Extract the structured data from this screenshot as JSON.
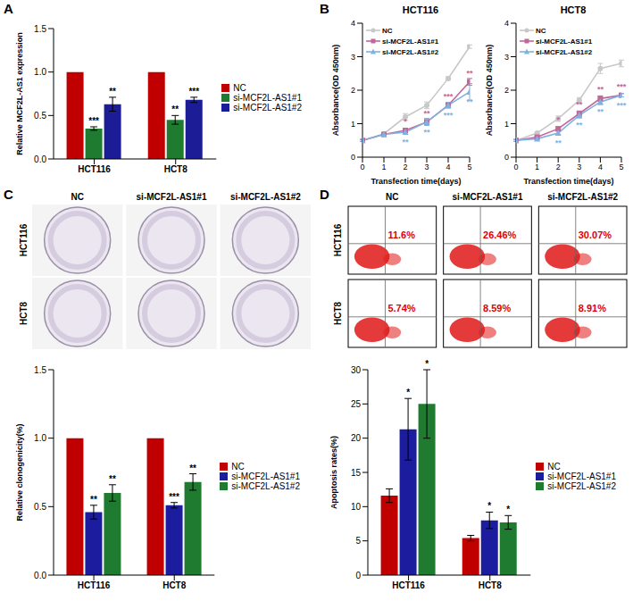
{
  "chart_data": [
    {
      "panel": "A",
      "type": "bar",
      "categories": [
        "HCT116",
        "HCT8"
      ],
      "ylabel": "Relative MCF2L-AS1 expression",
      "ylim": [
        0,
        1.5
      ],
      "yticks": [
        {
          "value": 0,
          "label": "0.0"
        },
        {
          "value": 0.5,
          "label": "0.5"
        },
        {
          "value": 1,
          "label": "1.0"
        },
        {
          "value": 1.5,
          "label": "1.5"
        }
      ],
      "legend": "right",
      "series": [
        {
          "name": "NC",
          "color": "#c00000",
          "values": [
            1,
            1
          ],
          "errors": [
            0,
            0
          ],
          "significance": [
            null,
            null
          ]
        },
        {
          "name": "si-MCF2L-AS1#1",
          "color": "#1e7b30",
          "values": [
            0.35,
            0.45
          ],
          "errors": [
            0.02,
            0.05
          ],
          "significance": [
            "***",
            "**"
          ]
        },
        {
          "name": "si-MCF2L-AS1#2",
          "color": "#1c1c96",
          "values": [
            0.63,
            0.68
          ],
          "errors": [
            0.08,
            0.03
          ],
          "significance": [
            "**",
            "***"
          ]
        }
      ]
    },
    {
      "panel": "B",
      "type": "line",
      "title": "HCT116",
      "x": [
        0,
        1,
        2,
        3,
        4,
        5
      ],
      "xlabel": "Transfection time(days)",
      "ylabel": "Absorbance(OD 450nm)",
      "xlim": [
        0,
        5
      ],
      "xticks": [
        0,
        1,
        2,
        3,
        4,
        5
      ],
      "ylim": [
        0,
        4
      ],
      "yticks": [
        0,
        1,
        2,
        3,
        4
      ],
      "legend": "upper left",
      "series": [
        {
          "name": "NC",
          "color": "#c8c8c8",
          "marker": "circle",
          "values": [
            0.5,
            0.7,
            1.2,
            1.55,
            2.35,
            3.3
          ],
          "errors": [
            0.03,
            0.03,
            0.1,
            0.1,
            0.05,
            0.05
          ],
          "significance": [
            null,
            null,
            null,
            null,
            null,
            null
          ]
        },
        {
          "name": "si-MCF2L-AS1#1",
          "color": "#c2679a",
          "marker": "square",
          "values": [
            0.5,
            0.68,
            0.8,
            1.05,
            1.55,
            2.25
          ],
          "errors": [
            0.03,
            0.03,
            0.05,
            0.1,
            0.08,
            0.1
          ],
          "significance": [
            null,
            null,
            "*",
            "**",
            "***",
            "**"
          ]
        },
        {
          "name": "si-MCF2L-AS1#2",
          "color": "#7fb2e0",
          "marker": "triangle",
          "values": [
            0.5,
            0.68,
            0.75,
            1.05,
            1.55,
            1.95
          ],
          "errors": [
            0.03,
            0.03,
            0.05,
            0.1,
            0.08,
            0.25
          ],
          "significance": [
            null,
            null,
            "**",
            "**",
            "***",
            "**"
          ]
        }
      ]
    },
    {
      "type": "line",
      "title": "HCT8",
      "x": [
        0,
        1,
        2,
        3,
        4,
        5
      ],
      "xlabel": "Transfection time(days)",
      "ylabel": "Absorbance(OD 450nm)",
      "xlim": [
        0,
        5
      ],
      "xticks": [
        0,
        1,
        2,
        3,
        4,
        5
      ],
      "ylim": [
        0,
        4
      ],
      "yticks": [
        0,
        1,
        2,
        3,
        4
      ],
      "legend": "upper left",
      "series": [
        {
          "name": "NC",
          "color": "#c8c8c8",
          "marker": "circle",
          "values": [
            0.5,
            0.72,
            1.15,
            1.7,
            2.65,
            2.8
          ],
          "errors": [
            0.03,
            0.03,
            0.08,
            0.08,
            0.15,
            0.1
          ],
          "significance": [
            null,
            null,
            null,
            null,
            null,
            null
          ]
        },
        {
          "name": "si-MCF2L-AS1#1",
          "color": "#c2679a",
          "marker": "square",
          "values": [
            0.5,
            0.6,
            0.85,
            1.3,
            1.75,
            1.85
          ],
          "errors": [
            0.03,
            0.03,
            0.05,
            0.08,
            0.08,
            0.05
          ],
          "significance": [
            null,
            null,
            "*",
            "**",
            "**",
            "***"
          ]
        },
        {
          "name": "si-MCF2L-AS1#2",
          "color": "#7fb2e0",
          "marker": "triangle",
          "values": [
            0.5,
            0.55,
            0.72,
            1.25,
            1.65,
            1.85
          ],
          "errors": [
            0.03,
            0.03,
            0.05,
            0.08,
            0.08,
            0.05
          ],
          "significance": [
            null,
            null,
            "**",
            "**",
            "**",
            "***"
          ]
        }
      ]
    },
    {
      "type": "bar",
      "categories": [
        "HCT116",
        "HCT8"
      ],
      "ylabel": "Relative clonogenicity(%)",
      "ylim": [
        0,
        1.5
      ],
      "yticks": [
        {
          "value": 0,
          "label": "0.0"
        },
        {
          "value": 0.5,
          "label": "0.5"
        },
        {
          "value": 1,
          "label": "1.0"
        },
        {
          "value": 1.5,
          "label": "1.5"
        }
      ],
      "legend": "right",
      "series": [
        {
          "name": "NC",
          "color": "#c00000",
          "values": [
            1,
            1
          ],
          "errors": [
            0,
            0
          ],
          "significance": [
            null,
            null
          ]
        },
        {
          "name": "si-MCF2L-AS1#1",
          "color": "#1c1c9e",
          "values": [
            0.46,
            0.51
          ],
          "errors": [
            0.05,
            0.02
          ],
          "significance": [
            "**",
            "***"
          ]
        },
        {
          "name": "si-MCF2L-AS1#2",
          "color": "#1e7b30",
          "values": [
            0.6,
            0.68
          ],
          "errors": [
            0.06,
            0.06
          ],
          "significance": [
            "**",
            "**"
          ]
        }
      ]
    },
    {
      "type": "bar",
      "categories": [
        "HCT116",
        "HCT8"
      ],
      "ylabel": "Apoptosis rates(%)",
      "ylim": [
        0,
        30
      ],
      "yticks": [
        0,
        5,
        10,
        15,
        20,
        25,
        30
      ],
      "legend": "right",
      "series": [
        {
          "name": "NC",
          "color": "#c00000",
          "values": [
            11.6,
            5.4
          ],
          "errors": [
            1,
            0.4
          ],
          "significance": [
            null,
            null
          ]
        },
        {
          "name": "si-MCF2L-AS1#1",
          "color": "#1c1c9e",
          "values": [
            21.3,
            8.0
          ],
          "errors": [
            4.5,
            1.2
          ],
          "significance": [
            "*",
            "*"
          ]
        },
        {
          "name": "si-MCF2L-AS1#2",
          "color": "#1e7b30",
          "values": [
            25,
            7.7
          ],
          "errors": [
            5,
            1
          ],
          "significance": [
            "*",
            "*"
          ]
        }
      ]
    }
  ],
  "images": [
    {
      "panel": "C",
      "columns": [
        "NC",
        "si-MCF2L-AS1#1",
        "si-MCF2L-AS1#2"
      ],
      "rows": [
        "HCT116",
        "HCT8"
      ]
    },
    {
      "panel": "D",
      "columns": [
        "NC",
        "si-MCF2L-AS1#1",
        "si-MCF2L-AS1#2"
      ],
      "rows": [
        "HCT116",
        "HCT8"
      ],
      "cell_labels": [
        [
          "11.6%",
          "26.46%",
          "30.07%"
        ],
        [
          "5.74%",
          "8.59%",
          "8.91%"
        ]
      ]
    }
  ]
}
